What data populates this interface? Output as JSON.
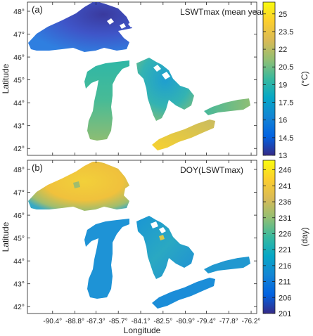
{
  "figure": {
    "xlabel": "Longitude",
    "ylabel": "Latitude"
  },
  "chart_data": [
    {
      "type": "heatmap",
      "panel_label": "(a)",
      "title": "LSWTmax (mean year)",
      "xlabel": "",
      "ylabel": "Latitude",
      "x_ticks": [
        "-90.4°",
        "-88.8°",
        "-87.3°",
        "-85.7°",
        "-84.1°",
        "-82.5°",
        "-80.9°",
        "-79.4°",
        "-77.8°",
        "-76.2°"
      ],
      "y_ticks": [
        "42°",
        "43°",
        "44°",
        "45°",
        "46°",
        "47°",
        "48°"
      ],
      "xlim": [
        -92.2,
        -75.8
      ],
      "ylim": [
        41.7,
        48.4
      ],
      "colorbar": {
        "label": "(°C)",
        "ticks": [
          "13",
          "14.5",
          "16",
          "17.5",
          "19",
          "20.5",
          "22",
          "23.5",
          "25"
        ],
        "range": [
          13,
          26
        ],
        "colormap": "parula"
      },
      "regions": [
        {
          "name": "Lake Superior",
          "approx_value": 14.5
        },
        {
          "name": "Lake Michigan",
          "approx_value": 21.5
        },
        {
          "name": "Lake Huron",
          "approx_value": 19.5
        },
        {
          "name": "Lake Erie",
          "approx_value": 24.5
        },
        {
          "name": "Lake Ontario",
          "approx_value": 21.5
        }
      ]
    },
    {
      "type": "heatmap",
      "panel_label": "(b)",
      "title": "DOY(LSWTmax)",
      "xlabel": "Longitude",
      "ylabel": "Latitude",
      "x_ticks": [
        "-90.4°",
        "-88.8°",
        "-87.3°",
        "-85.7°",
        "-84.1°",
        "-82.5°",
        "-80.9°",
        "-79.4°",
        "-77.8°",
        "-76.2°"
      ],
      "y_ticks": [
        "42°",
        "43°",
        "44°",
        "45°",
        "46°",
        "47°",
        "48°"
      ],
      "xlim": [
        -92.2,
        -75.8
      ],
      "ylim": [
        41.7,
        48.4
      ],
      "colorbar": {
        "label": "(day)",
        "ticks": [
          "201",
          "206",
          "211",
          "216",
          "221",
          "226",
          "231",
          "236",
          "241",
          "246"
        ],
        "range": [
          201,
          249
        ],
        "colormap": "parula"
      },
      "regions": [
        {
          "name": "Lake Superior",
          "approx_value": 240
        },
        {
          "name": "Lake Michigan",
          "approx_value": 217
        },
        {
          "name": "Lake Huron",
          "approx_value": 219
        },
        {
          "name": "Lake Erie",
          "approx_value": 215
        },
        {
          "name": "Lake Ontario",
          "approx_value": 217
        }
      ]
    }
  ],
  "colors": {
    "parula": [
      "#352a87",
      "#0363e1",
      "#1485d4",
      "#06a7c6",
      "#38b99e",
      "#92bf73",
      "#d9ba56",
      "#fcce2e",
      "#f9fb0e"
    ],
    "axis": "#222222",
    "panel_bg": "#ffffff"
  }
}
